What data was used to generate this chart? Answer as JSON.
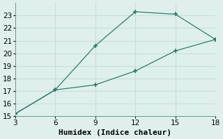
{
  "x": [
    3,
    6,
    9,
    12,
    15,
    18
  ],
  "y_upper": [
    15.2,
    17.1,
    20.6,
    23.3,
    23.1,
    21.1
  ],
  "y_lower": [
    15.2,
    17.1,
    17.5,
    18.6,
    20.2,
    21.1
  ],
  "line_color": "#2a7d6f",
  "bg_color": "#dff0ec",
  "grid_color": "#c8ddd9",
  "xlabel": "Humidex (Indice chaleur)",
  "xlim": [
    3,
    18
  ],
  "ylim": [
    15,
    24
  ],
  "xticks": [
    3,
    6,
    9,
    12,
    15,
    18
  ],
  "yticks": [
    15,
    16,
    17,
    18,
    19,
    20,
    21,
    22,
    23
  ],
  "xlabel_fontsize": 8,
  "tick_fontsize": 7.5
}
